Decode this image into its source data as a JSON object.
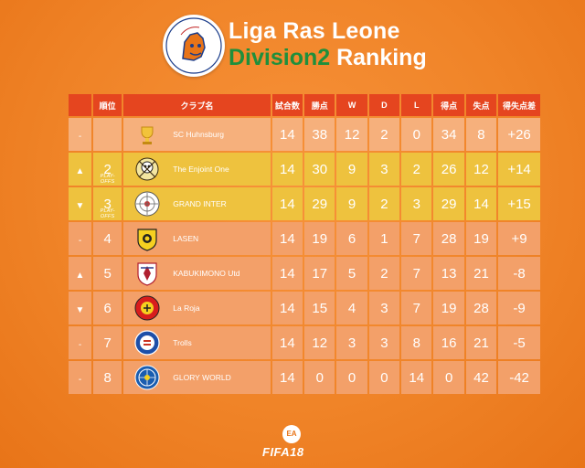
{
  "header": {
    "title_line1": "Liga Ras Leone",
    "title_line2_green": "Division2",
    "title_line2_white": " Ranking"
  },
  "table": {
    "columns": [
      "順位",
      "クラブ名",
      "試合数",
      "勝点",
      "W",
      "D",
      "L",
      "得点",
      "失点",
      "得失点差"
    ],
    "rows": [
      {
        "move": "-",
        "rank": "",
        "note": "",
        "club": "SC Huhnsburg",
        "p": "14",
        "pts": "38",
        "w": "12",
        "d": "2",
        "l": "0",
        "gf": "34",
        "ga": "8",
        "gd": "+26",
        "style": "r-light",
        "crest": "trophy"
      },
      {
        "move": "▲",
        "rank": "2",
        "note": "PLAY-OFFS",
        "club": "The Enjoint One",
        "p": "14",
        "pts": "30",
        "w": "9",
        "d": "3",
        "l": "2",
        "gf": "26",
        "ga": "12",
        "gd": "+14",
        "style": "r-yellow",
        "crest": "skull"
      },
      {
        "move": "▼",
        "rank": "3",
        "note": "PLAY-OFFS",
        "club": "GRAND INTER",
        "p": "14",
        "pts": "29",
        "w": "9",
        "d": "2",
        "l": "3",
        "gf": "29",
        "ga": "14",
        "gd": "+15",
        "style": "r-yellow",
        "crest": "target"
      },
      {
        "move": "-",
        "rank": "4",
        "note": "",
        "club": "LASEN",
        "p": "14",
        "pts": "19",
        "w": "6",
        "d": "1",
        "l": "7",
        "gf": "28",
        "ga": "19",
        "gd": "+9",
        "style": "r-orange",
        "crest": "lasen"
      },
      {
        "move": "▲",
        "rank": "5",
        "note": "",
        "club": "KABUKIMONO Utd",
        "p": "14",
        "pts": "17",
        "w": "5",
        "d": "2",
        "l": "7",
        "gf": "13",
        "ga": "21",
        "gd": "-8",
        "style": "r-orange",
        "crest": "shield"
      },
      {
        "move": "▼",
        "rank": "6",
        "note": "",
        "club": "La Roja",
        "p": "14",
        "pts": "15",
        "w": "4",
        "d": "3",
        "l": "7",
        "gf": "19",
        "ga": "28",
        "gd": "-9",
        "style": "r-orange",
        "crest": "laroja"
      },
      {
        "move": "-",
        "rank": "7",
        "note": "",
        "club": "Trolls",
        "p": "14",
        "pts": "12",
        "w": "3",
        "d": "3",
        "l": "8",
        "gf": "16",
        "ga": "21",
        "gd": "-5",
        "style": "r-orange",
        "crest": "trolls"
      },
      {
        "move": "-",
        "rank": "8",
        "note": "",
        "club": "GLORY WORLD",
        "p": "14",
        "pts": "0",
        "w": "0",
        "d": "0",
        "l": "14",
        "gf": "0",
        "ga": "42",
        "gd": "-42",
        "style": "r-orange",
        "crest": "glory"
      }
    ]
  },
  "footer": {
    "brand": "FIFA18",
    "ea": "EA"
  },
  "colors": {
    "header_bg": "#e5451f",
    "title_green": "#1f8f3c",
    "row_yellow": "#eec23e",
    "row_orange": "#f3a069",
    "row_light": "#f6b07c"
  }
}
